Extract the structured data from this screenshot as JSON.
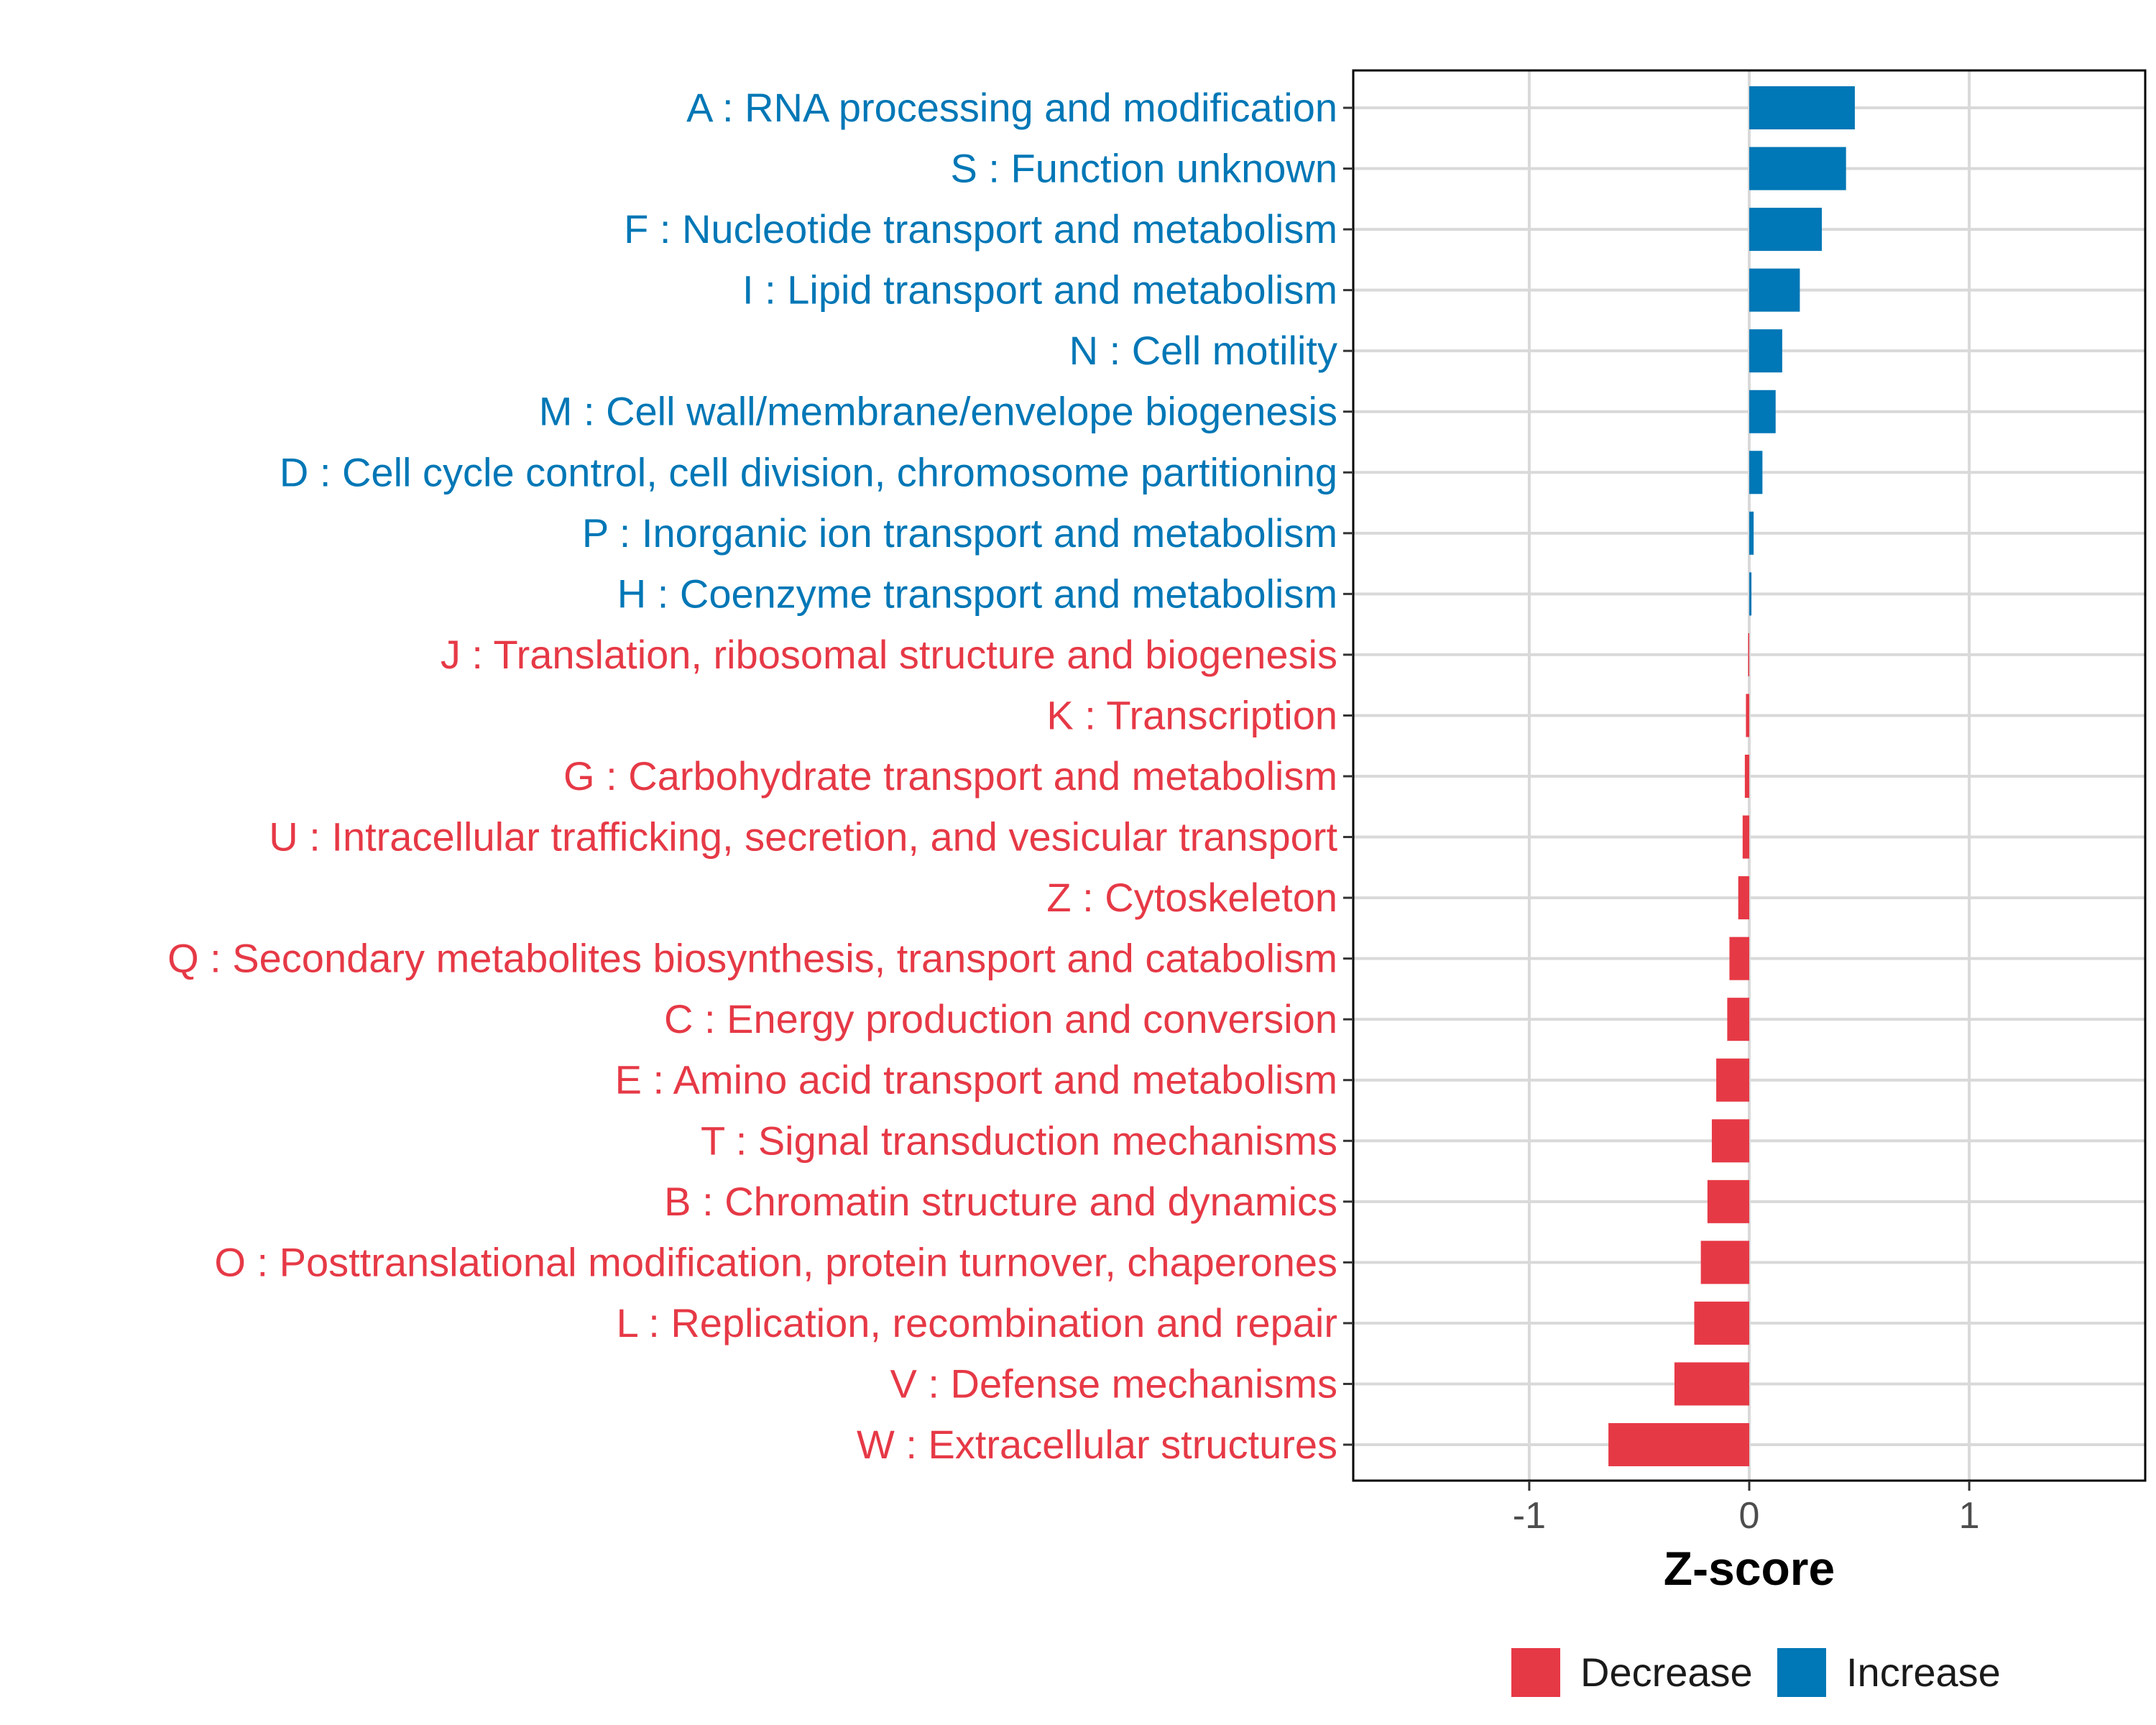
{
  "chart_data": {
    "type": "bar",
    "orientation": "horizontal",
    "title": "",
    "xlabel": "Z-score",
    "ylabel": "",
    "xlim": [
      -1.8,
      1.8
    ],
    "xticks": [
      -1,
      0,
      1
    ],
    "xtick_labels": [
      "-1",
      "0",
      "1"
    ],
    "grid": true,
    "categories": [
      "A : RNA processing and modification",
      "S : Function unknown",
      "F : Nucleotide transport and metabolism",
      "I : Lipid transport and metabolism",
      "N : Cell motility",
      "M : Cell wall/membrane/envelope biogenesis",
      "D : Cell cycle control, cell division, chromosome partitioning",
      "P : Inorganic ion transport and metabolism",
      "H : Coenzyme transport and metabolism",
      "J : Translation, ribosomal structure and biogenesis",
      "K : Transcription",
      "G : Carbohydrate transport and metabolism",
      "U : Intracellular trafficking, secretion, and vesicular transport",
      "Z : Cytoskeleton",
      "Q : Secondary metabolites biosynthesis, transport and catabolism",
      "C : Energy production and conversion",
      "E : Amino acid transport and metabolism",
      "T : Signal transduction mechanisms",
      "B : Chromatin structure and dynamics",
      "O : Posttranslational modification, protein turnover, chaperones",
      "L : Replication, recombination and repair",
      "V : Defense mechanisms",
      "W : Extracellular structures"
    ],
    "values": [
      0.48,
      0.44,
      0.33,
      0.23,
      0.15,
      0.12,
      0.06,
      0.02,
      0.01,
      -0.005,
      -0.015,
      -0.02,
      -0.03,
      -0.05,
      -0.09,
      -0.1,
      -0.15,
      -0.17,
      -0.19,
      -0.22,
      -0.25,
      -0.34,
      -0.64
    ],
    "groups": [
      "Increase",
      "Increase",
      "Increase",
      "Increase",
      "Increase",
      "Increase",
      "Increase",
      "Increase",
      "Increase",
      "Decrease",
      "Decrease",
      "Decrease",
      "Decrease",
      "Decrease",
      "Decrease",
      "Decrease",
      "Decrease",
      "Decrease",
      "Decrease",
      "Decrease",
      "Decrease",
      "Decrease",
      "Decrease"
    ],
    "legend": {
      "position": "bottom",
      "items": [
        {
          "label": "Decrease",
          "color": "#E63946"
        },
        {
          "label": "Increase",
          "color": "#0077B6"
        }
      ]
    },
    "colors": {
      "Increase": "#0077B6",
      "Decrease": "#E63946"
    }
  }
}
